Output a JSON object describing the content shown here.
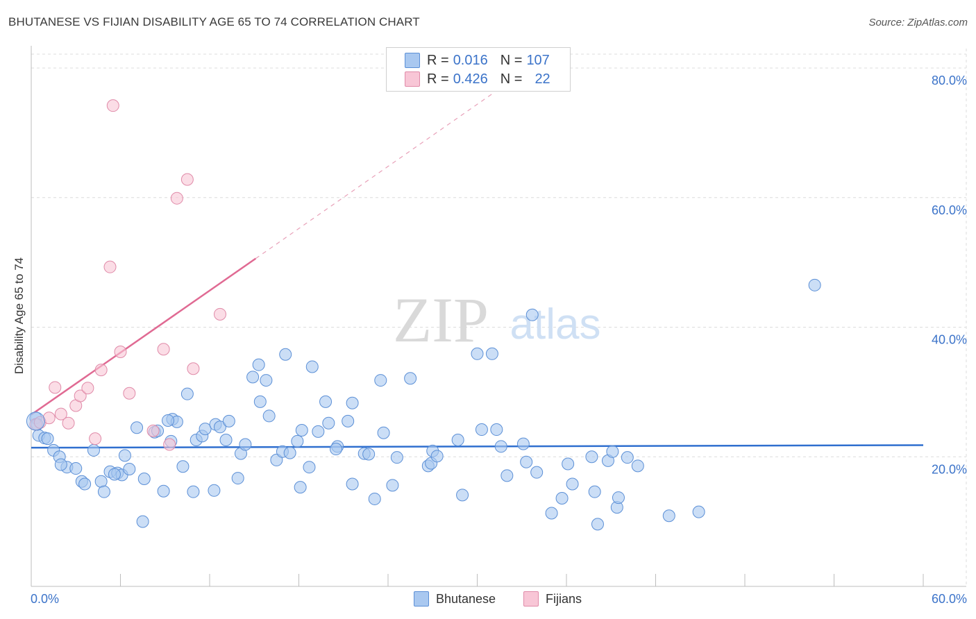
{
  "title": "BHUTANESE VS FIJIAN DISABILITY AGE 65 TO 74 CORRELATION CHART",
  "source": "Source: ZipAtlas.com",
  "watermark": {
    "zip": "ZIP",
    "atlas": "atlas"
  },
  "legend": {
    "rows": [
      {
        "r_label": "R =",
        "r_value": "0.016",
        "n_label": "N =",
        "n_value": "107",
        "color": "#a9c8f0",
        "border": "#5b8fd6"
      },
      {
        "r_label": "R =",
        "r_value": "0.426",
        "n_label": "N =",
        "n_value": "22",
        "color": "#f8c6d6",
        "border": "#e08aa8"
      }
    ]
  },
  "bottom_legend": [
    {
      "label": "Bhutanese",
      "color": "#a9c8f0",
      "border": "#5b8fd6"
    },
    {
      "label": "Fijians",
      "color": "#f8c6d6",
      "border": "#e08aa8"
    }
  ],
  "chart_data": {
    "type": "scatter",
    "title": "BHUTANESE VS FIJIAN DISABILITY AGE 65 TO 74 CORRELATION CHART",
    "xlabel": "",
    "ylabel": "Disability Age 65 to 74",
    "xlim": [
      0,
      60
    ],
    "ylim": [
      0,
      83
    ],
    "x_tick_labels": [
      {
        "value": 0,
        "label": "0.0%"
      },
      {
        "value": 60,
        "label": "60.0%"
      }
    ],
    "y_tick_labels": [
      {
        "value": 20,
        "label": "20.0%"
      },
      {
        "value": 40,
        "label": "40.0%"
      },
      {
        "value": 60,
        "label": "60.0%"
      },
      {
        "value": 80,
        "label": "80.0%"
      }
    ],
    "series": [
      {
        "name": "Bhutanese",
        "color": "#a9c8f0",
        "stroke": "#5b8fd6",
        "trend": {
          "x1": 0,
          "y1": 21.4,
          "x2": 60,
          "y2": 21.8,
          "color": "#2f6fcf"
        },
        "points": [
          [
            0.3,
            26.0
          ],
          [
            0.5,
            23.3
          ],
          [
            0.9,
            22.9
          ],
          [
            1.5,
            21.0
          ],
          [
            1.9,
            20.0
          ],
          [
            2.4,
            18.4
          ],
          [
            3.0,
            18.2
          ],
          [
            3.4,
            16.2
          ],
          [
            3.6,
            15.8
          ],
          [
            4.2,
            21.0
          ],
          [
            4.7,
            16.2
          ],
          [
            4.9,
            14.6
          ],
          [
            5.3,
            17.7
          ],
          [
            5.8,
            17.5
          ],
          [
            6.1,
            17.2
          ],
          [
            6.3,
            20.2
          ],
          [
            6.6,
            18.1
          ],
          [
            7.1,
            24.5
          ],
          [
            7.6,
            16.6
          ],
          [
            8.3,
            23.8
          ],
          [
            7.5,
            10.0
          ],
          [
            8.5,
            24.0
          ],
          [
            8.9,
            14.7
          ],
          [
            9.4,
            22.4
          ],
          [
            9.5,
            25.8
          ],
          [
            9.8,
            25.4
          ],
          [
            10.2,
            18.5
          ],
          [
            10.5,
            29.7
          ],
          [
            10.9,
            14.6
          ],
          [
            11.1,
            22.6
          ],
          [
            11.5,
            23.2
          ],
          [
            11.7,
            24.3
          ],
          [
            12.3,
            14.8
          ],
          [
            12.4,
            25.0
          ],
          [
            12.7,
            24.6
          ],
          [
            13.1,
            22.6
          ],
          [
            13.3,
            25.5
          ],
          [
            13.9,
            16.7
          ],
          [
            14.1,
            20.5
          ],
          [
            14.4,
            21.9
          ],
          [
            14.9,
            32.3
          ],
          [
            15.3,
            34.2
          ],
          [
            15.4,
            28.5
          ],
          [
            15.8,
            31.8
          ],
          [
            16.0,
            26.3
          ],
          [
            16.5,
            19.5
          ],
          [
            16.9,
            20.8
          ],
          [
            17.1,
            35.8
          ],
          [
            17.4,
            20.6
          ],
          [
            17.9,
            22.4
          ],
          [
            18.2,
            24.1
          ],
          [
            18.1,
            15.3
          ],
          [
            18.7,
            18.4
          ],
          [
            18.9,
            33.9
          ],
          [
            19.3,
            23.9
          ],
          [
            19.8,
            28.5
          ],
          [
            20.0,
            25.2
          ],
          [
            20.6,
            21.6
          ],
          [
            20.5,
            21.2
          ],
          [
            21.3,
            25.5
          ],
          [
            21.6,
            28.3
          ],
          [
            21.6,
            15.8
          ],
          [
            22.4,
            20.5
          ],
          [
            22.7,
            20.4
          ],
          [
            23.1,
            13.5
          ],
          [
            23.5,
            31.8
          ],
          [
            23.7,
            23.7
          ],
          [
            24.3,
            15.6
          ],
          [
            24.6,
            19.9
          ],
          [
            25.5,
            32.1
          ],
          [
            26.7,
            18.6
          ],
          [
            27.0,
            20.9
          ],
          [
            26.9,
            19.0
          ],
          [
            27.3,
            20.1
          ],
          [
            28.7,
            22.6
          ],
          [
            29.0,
            14.1
          ],
          [
            30.0,
            35.9
          ],
          [
            30.3,
            24.2
          ],
          [
            31.0,
            35.9
          ],
          [
            31.3,
            24.2
          ],
          [
            31.6,
            21.6
          ],
          [
            32.0,
            17.1
          ],
          [
            33.1,
            22.0
          ],
          [
            33.3,
            19.2
          ],
          [
            33.7,
            41.9
          ],
          [
            34.0,
            17.6
          ],
          [
            35.0,
            11.3
          ],
          [
            35.7,
            13.6
          ],
          [
            36.1,
            18.9
          ],
          [
            36.4,
            15.8
          ],
          [
            37.7,
            20.0
          ],
          [
            37.9,
            14.6
          ],
          [
            38.1,
            9.6
          ],
          [
            38.8,
            19.4
          ],
          [
            39.1,
            20.8
          ],
          [
            39.4,
            12.2
          ],
          [
            39.5,
            13.7
          ],
          [
            40.1,
            19.9
          ],
          [
            40.8,
            18.6
          ],
          [
            42.9,
            10.9
          ],
          [
            44.9,
            11.5
          ],
          [
            52.7,
            46.5
          ],
          [
            0.4,
            25.0
          ],
          [
            1.1,
            22.8
          ],
          [
            2.0,
            18.8
          ],
          [
            5.6,
            17.3
          ],
          [
            9.2,
            25.6
          ]
        ]
      },
      {
        "name": "Fijians",
        "color": "#f8c6d6",
        "stroke": "#e08aa8",
        "trend": {
          "x1": 0,
          "y1": 26.5,
          "x2": 15.1,
          "y2": 50.6,
          "color": "#e06a93",
          "dashed_x2": 31,
          "dashed_y2": 76
        },
        "points": [
          [
            0.3,
            25.0
          ],
          [
            0.6,
            25.3
          ],
          [
            1.2,
            26.0
          ],
          [
            1.6,
            30.7
          ],
          [
            2.0,
            26.6
          ],
          [
            2.5,
            25.2
          ],
          [
            3.0,
            27.9
          ],
          [
            3.3,
            29.4
          ],
          [
            3.8,
            30.6
          ],
          [
            4.3,
            22.8
          ],
          [
            4.7,
            33.4
          ],
          [
            5.3,
            49.3
          ],
          [
            5.5,
            74.2
          ],
          [
            6.0,
            36.2
          ],
          [
            6.6,
            29.8
          ],
          [
            8.2,
            24.0
          ],
          [
            8.9,
            36.6
          ],
          [
            9.3,
            21.9
          ],
          [
            9.8,
            59.9
          ],
          [
            10.5,
            62.8
          ],
          [
            10.9,
            33.6
          ],
          [
            12.7,
            42.0
          ]
        ]
      }
    ]
  }
}
